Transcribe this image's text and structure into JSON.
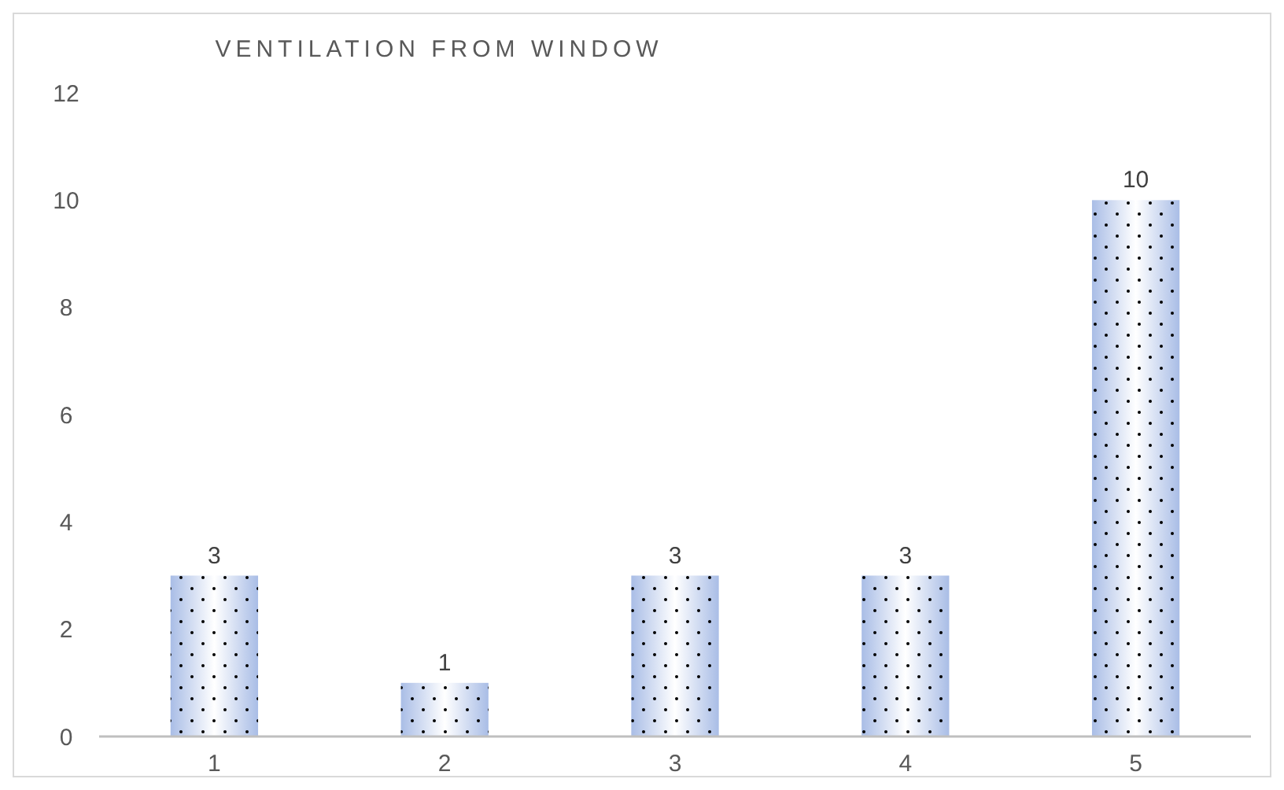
{
  "chart_data": {
    "type": "bar",
    "title": "VENTILATION FROM WINDOW",
    "categories": [
      "1",
      "2",
      "3",
      "4",
      "5"
    ],
    "values": [
      3,
      1,
      3,
      3,
      10
    ],
    "color": "#a9bde6",
    "ylim": [
      0,
      12
    ],
    "yticks": [
      0,
      2,
      4,
      6,
      8,
      10,
      12
    ],
    "grid": false,
    "data_labels": true
  }
}
